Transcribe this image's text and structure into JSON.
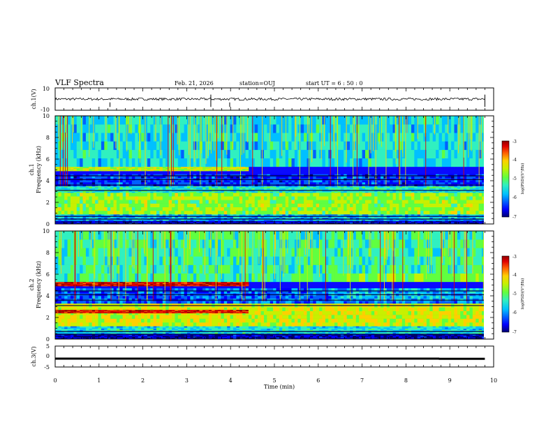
{
  "title": {
    "main": "VLF Spectra",
    "date": "Feb. 21, 2026",
    "station": "station=OUJ",
    "start": "start  UT  =   6  : 50 : 0"
  },
  "colors": {
    "scale": [
      "#000070",
      "#0000ff",
      "#0060ff",
      "#00c0ff",
      "#30f0c0",
      "#60ff40",
      "#c8f000",
      "#ffd000",
      "#ff6000",
      "#e00000",
      "#900000"
    ]
  },
  "chart_data": [
    {
      "id": "ch1-waveform",
      "type": "line",
      "ylabel": "ch.1(V)",
      "ylim": [
        -10,
        10
      ],
      "yticks": [
        "10",
        "-10"
      ],
      "xlim": [
        0,
        10
      ],
      "description_values": {
        "mean": 0,
        "spike_times_min": [
          1.25,
          3.55,
          3.98,
          9.8
        ]
      }
    },
    {
      "id": "ch1-spectrogram",
      "type": "heatmap",
      "ylabel": "ch.1\nFrequency (kHz)",
      "ylim": [
        0,
        10
      ],
      "yticks": [
        "0",
        "2",
        "4",
        "6",
        "8",
        "10"
      ],
      "xlim": [
        0,
        10
      ],
      "colorbar": {
        "label": "log(PSD)(V²/Hz)",
        "range": [
          -7,
          -3
        ],
        "ticks": [
          "-3",
          "-4",
          "-5",
          "-6",
          "-7"
        ]
      },
      "bands_khz": [
        {
          "from": 0.0,
          "to": 0.3,
          "level": 0.05
        },
        {
          "from": 0.3,
          "to": 0.9,
          "level": 0.3
        },
        {
          "from": 0.9,
          "to": 2.9,
          "level": 0.55
        },
        {
          "from": 2.9,
          "to": 3.5,
          "level": 0.38
        },
        {
          "from": 3.5,
          "to": 4.6,
          "level": 0.15
        },
        {
          "from": 4.9,
          "to": 5.3,
          "level": 0.6,
          "until_min": 4.4
        },
        {
          "from": 5.3,
          "to": 10.0,
          "level": 0.35
        }
      ]
    },
    {
      "id": "ch2-spectrogram",
      "type": "heatmap",
      "ylabel": "ch.2\nFrequency (kHz)",
      "ylim": [
        0,
        10
      ],
      "yticks": [
        "0",
        "2",
        "4",
        "6",
        "8",
        "10"
      ],
      "xlim": [
        0,
        10
      ],
      "colorbar": {
        "label": "log(PSD)(V²/Hz)",
        "range": [
          -7,
          -3
        ],
        "ticks": [
          "-3",
          "-4",
          "-5",
          "-6",
          "-7"
        ]
      },
      "bands_khz": [
        {
          "from": 0.0,
          "to": 0.5,
          "level": 0.05
        },
        {
          "from": 0.5,
          "to": 1.2,
          "level": 0.35
        },
        {
          "from": 1.2,
          "to": 3.3,
          "level": 0.62
        },
        {
          "from": 2.4,
          "to": 2.7,
          "level": 0.9,
          "until_min": 4.4
        },
        {
          "from": 3.3,
          "to": 4.7,
          "level": 0.2
        },
        {
          "from": 4.9,
          "to": 5.3,
          "level": 0.92,
          "until_min": 4.4
        },
        {
          "from": 5.3,
          "to": 10.0,
          "level": 0.42
        }
      ]
    },
    {
      "id": "ch3-waveform",
      "type": "line",
      "ylabel": "ch.3(V)",
      "ylim": [
        -5,
        5
      ],
      "yticks": [
        "5",
        "0",
        "-5"
      ],
      "xlim": [
        0,
        10
      ],
      "x": [
        0,
        8.75,
        8.76,
        9.8
      ],
      "y": [
        -1.0,
        -1.0,
        -1.1,
        -1.1
      ]
    }
  ],
  "xaxis": {
    "label": "Time (min)",
    "ticks": [
      "0",
      "1",
      "2",
      "3",
      "4",
      "5",
      "6",
      "7",
      "8",
      "9",
      "10"
    ]
  }
}
